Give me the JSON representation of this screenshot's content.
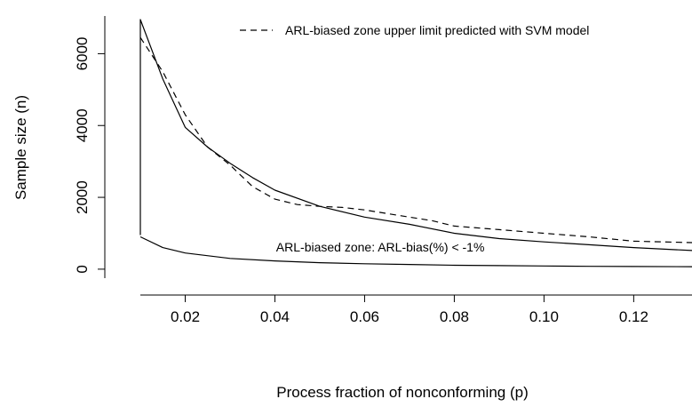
{
  "chart_data": {
    "type": "line",
    "title": "",
    "xlabel": "Process fraction of nonconforming (p)",
    "ylabel": "Sample size (n)",
    "xlim": [
      0.01,
      0.133
    ],
    "ylim": [
      -250,
      7000
    ],
    "x_ticks": [
      0.02,
      0.04,
      0.06,
      0.08,
      0.1,
      0.12
    ],
    "x_tick_labels": [
      "0.02",
      "0.04",
      "0.06",
      "0.08",
      "0.10",
      "0.12"
    ],
    "y_ticks": [
      0,
      2000,
      4000,
      6000
    ],
    "y_tick_labels": [
      "0",
      "2000",
      "4000",
      "6000"
    ],
    "grid": false,
    "legend": {
      "position": "top-right",
      "entries": [
        {
          "label": "ARL-biased zone upper limit predicted with SVM model",
          "style": "dashed"
        }
      ]
    },
    "annotations": [
      {
        "text": "ARL-biased zone: ARL-bias(%) < -1%",
        "x": 0.0635,
        "y": 620
      }
    ],
    "series": [
      {
        "style": "solid",
        "x": [
          0.01,
          0.01,
          0.015,
          0.02,
          0.025,
          0.03,
          0.035,
          0.04,
          0.05,
          0.06,
          0.07,
          0.08,
          0.09,
          0.1,
          0.11,
          0.12,
          0.133
        ],
        "values": [
          950,
          6950,
          5300,
          3950,
          3400,
          2950,
          2550,
          2200,
          1750,
          1450,
          1250,
          1000,
          850,
          760,
          680,
          600,
          520
        ]
      },
      {
        "style": "solid",
        "x": [
          0.01,
          0.015,
          0.02,
          0.03,
          0.04,
          0.05,
          0.06,
          0.07,
          0.08,
          0.09,
          0.1,
          0.11,
          0.12,
          0.133
        ],
        "values": [
          900,
          600,
          450,
          300,
          230,
          180,
          150,
          130,
          110,
          100,
          90,
          80,
          75,
          70
        ]
      },
      {
        "style": "dashed",
        "x": [
          0.01,
          0.015,
          0.02,
          0.025,
          0.03,
          0.035,
          0.04,
          0.045,
          0.05,
          0.055,
          0.06,
          0.065,
          0.07,
          0.075,
          0.08,
          0.09,
          0.1,
          0.11,
          0.12,
          0.133
        ],
        "values": [
          6450,
          5500,
          4300,
          3400,
          2900,
          2300,
          1950,
          1800,
          1750,
          1720,
          1650,
          1550,
          1450,
          1350,
          1200,
          1100,
          1000,
          900,
          780,
          740
        ]
      }
    ]
  }
}
